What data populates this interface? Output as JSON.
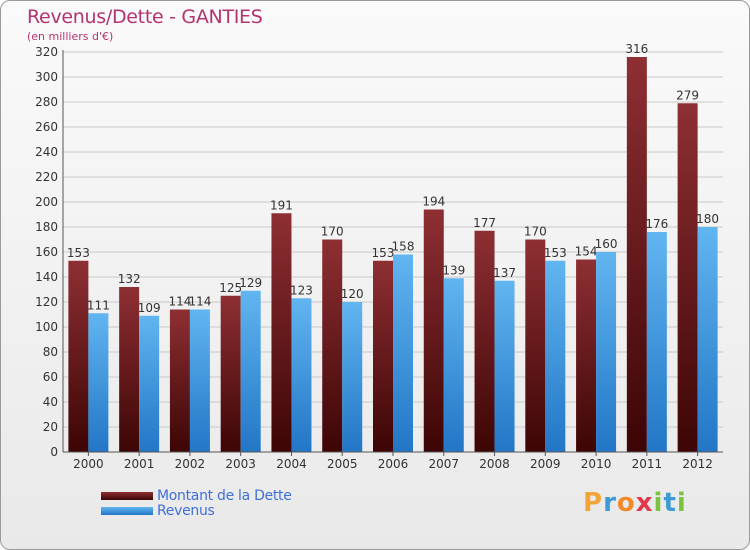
{
  "title": "Revenus/Dette - GANTIES",
  "subtitle": "(en milliers d'€)",
  "colors": {
    "title": "#b4336f",
    "debt_top": "#8e2f33",
    "debt_bottom": "#3d0505",
    "revenue_top": "#61b5f0",
    "revenue_bottom": "#2276c6",
    "legend_text": "#3f6fd8"
  },
  "chart_data": {
    "type": "bar",
    "title": "Revenus/Dette - GANTIES",
    "subtitle": "(en milliers d'€)",
    "categories": [
      "2000",
      "2001",
      "2002",
      "2003",
      "2004",
      "2005",
      "2006",
      "2007",
      "2008",
      "2009",
      "2010",
      "2011",
      "2012"
    ],
    "series": [
      {
        "name": "Montant de la Dette",
        "values": [
          153,
          132,
          114,
          125,
          191,
          170,
          153,
          194,
          177,
          170,
          154,
          316,
          279
        ]
      },
      {
        "name": "Revenus",
        "values": [
          111,
          109,
          114,
          129,
          123,
          120,
          158,
          139,
          137,
          153,
          160,
          176,
          180
        ]
      }
    ],
    "ylim": [
      0,
      320
    ],
    "yticks": [
      0,
      20,
      40,
      60,
      80,
      100,
      120,
      140,
      160,
      180,
      200,
      220,
      240,
      260,
      280,
      300,
      320
    ],
    "grid": true,
    "legend": "bottom-left"
  },
  "legend": {
    "items": [
      {
        "label": "Montant de la Dette"
      },
      {
        "label": "Revenus"
      }
    ]
  },
  "logo": {
    "letters": [
      "P",
      "r",
      "o",
      "x",
      "i",
      "t",
      "i"
    ],
    "colors": [
      "#f2a43a",
      "#3c9bd6",
      "#f08a2c",
      "#e3374b",
      "#7cc242",
      "#3c9bd6",
      "#7cc242"
    ]
  }
}
